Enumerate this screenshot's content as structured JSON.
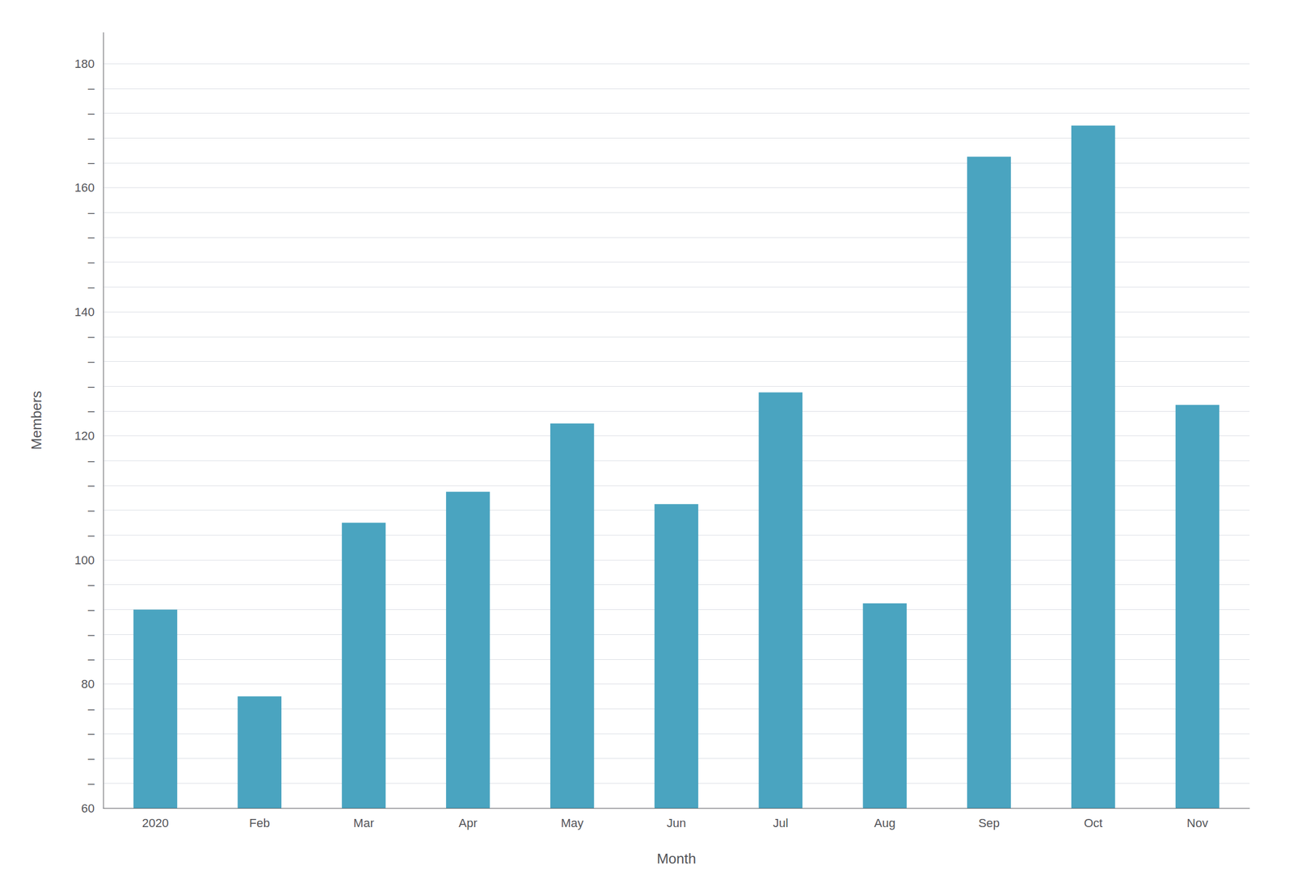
{
  "chart_data": {
    "type": "bar",
    "categories": [
      "2020",
      "Feb",
      "Mar",
      "Apr",
      "May",
      "Jun",
      "Jul",
      "Aug",
      "Sep",
      "Oct",
      "Nov"
    ],
    "values": [
      92,
      78,
      106,
      111,
      122,
      109,
      127,
      93,
      165,
      170,
      125
    ],
    "color": "#4aA4C0",
    "xlabel": "Month",
    "ylabel": "Members",
    "ylim": [
      60,
      185
    ],
    "yticks": [
      60,
      {
        "value": 64,
        "label": "–"
      },
      {
        "value": 68,
        "label": "–"
      },
      {
        "value": 72,
        "label": "–"
      },
      {
        "value": 76,
        "label": "–"
      },
      80,
      {
        "value": 84,
        "label": "–"
      },
      {
        "value": 88,
        "label": "–"
      },
      {
        "value": 92,
        "label": "–"
      },
      {
        "value": 96,
        "label": "–"
      },
      100,
      {
        "value": 104,
        "label": "–"
      },
      {
        "value": 108,
        "label": "–"
      },
      {
        "value": 112,
        "label": "–"
      },
      {
        "value": 116,
        "label": "–"
      },
      120,
      {
        "value": 124,
        "label": "–"
      },
      {
        "value": 128,
        "label": "–"
      },
      {
        "value": 132,
        "label": "–"
      },
      {
        "value": 136,
        "label": "–"
      },
      140,
      {
        "value": 144,
        "label": "–"
      },
      {
        "value": 148,
        "label": "–"
      },
      {
        "value": 152,
        "label": "–"
      },
      {
        "value": 156,
        "label": "–"
      },
      160,
      {
        "value": 164,
        "label": "–"
      },
      {
        "value": 168,
        "label": "–"
      },
      {
        "value": 172,
        "label": "–"
      },
      {
        "value": 176,
        "label": "–"
      },
      180
    ],
    "grid": true
  }
}
